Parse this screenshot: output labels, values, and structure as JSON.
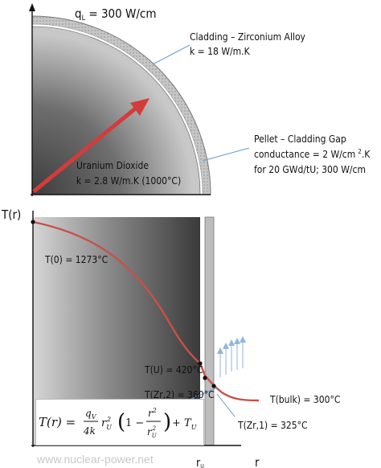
{
  "top": {
    "heat_rate": "q",
    "heat_rate_sub": "L",
    "heat_rate_value": " = 300 W/cm",
    "cladding_line1": "Cladding – Zirconium Alloy",
    "cladding_line2": "k = 18 W/m.K",
    "gap_line1": "Pellet – Cladding Gap",
    "gap_line2a": "conductance = 2 W/cm",
    "gap_line2sup": "2",
    "gap_line2b": ".K",
    "gap_line3": "for 20 GWd/tU;  300 W/cm",
    "fuel_line1": "Uranium Dioxide",
    "fuel_line2": "k = 2.8 W/m.K  (1000°C)"
  },
  "bottom": {
    "y_axis_label": "T(r)",
    "x_axis_label": "r",
    "x_tick_ru": "r",
    "x_tick_ru_sub": "U",
    "t0_label": "T(0) = 1273°C",
    "tu_label": "T(U) = 420°C",
    "tzr2_label": "T(Zr,2) = 360°C",
    "tbulk_label": "T(bulk) = 300°C",
    "tzr1_label": "T(Zr,1) = 325°C"
  },
  "equation": {
    "lhs": "T(r) =",
    "numer": "q",
    "numer_sub": "V",
    "denom": "4k",
    "ru": "r",
    "ru_sub": "U",
    "ru_sup": "2",
    "paren_open": "(",
    "one_minus": "1 −",
    "frac_numer": "r",
    "frac_numer_sup": "2",
    "frac_denom": "r",
    "frac_denom_sub": "U",
    "frac_denom_sup": "2",
    "paren_close": ")",
    "plus_tu": "+ T",
    "plus_tu_sub": "U"
  },
  "watermark": "www.nuclear-power.net",
  "colors": {
    "arrow": "#d43b3b",
    "curve": "#c8504a",
    "cladding": "#bdbdbd",
    "coolant_arrows": "#8fb6dc",
    "leader": "#6a9ccc"
  }
}
